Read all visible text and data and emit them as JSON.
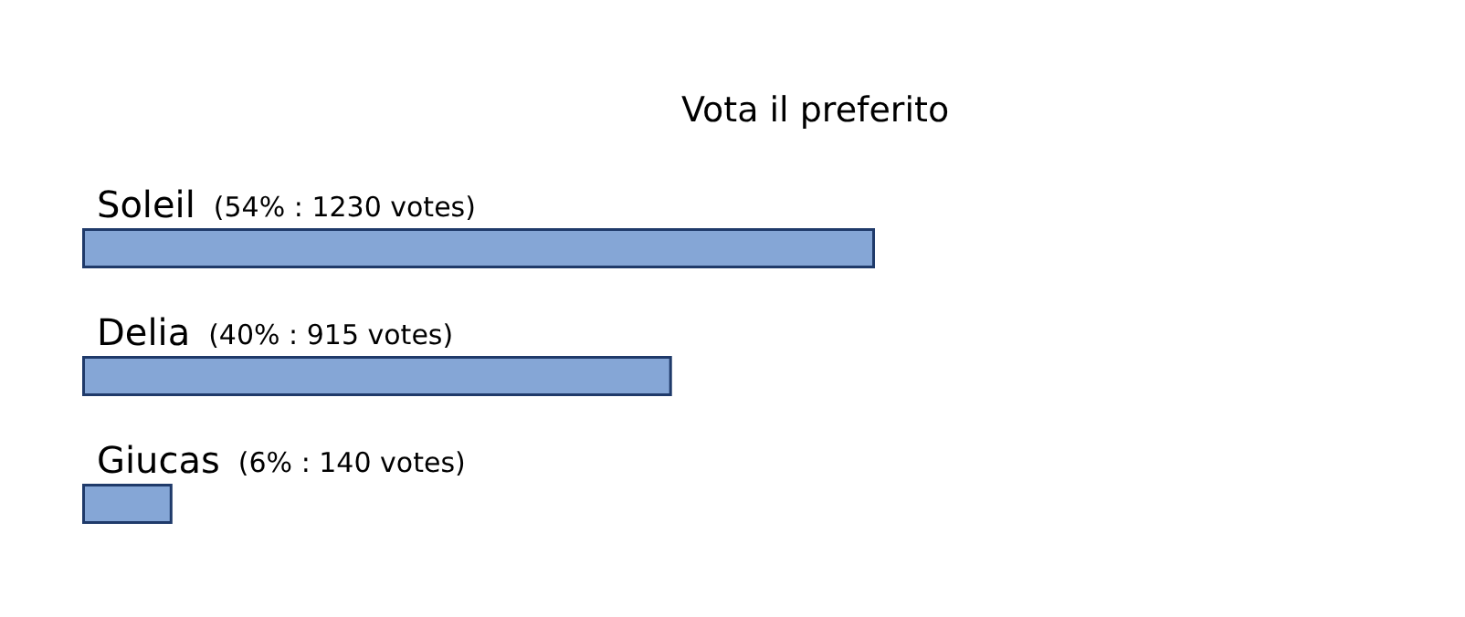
{
  "chart_data": {
    "type": "bar",
    "orientation": "horizontal",
    "title": "Vota il preferito",
    "categories": [
      "Soleil",
      "Delia",
      "Giucas"
    ],
    "values": [
      1230,
      915,
      140
    ],
    "value_labels": [
      "(54% : 1230 votes)",
      "(40% : 915 votes)",
      "(6% : 140 votes)"
    ],
    "color": "#85a6d6"
  }
}
